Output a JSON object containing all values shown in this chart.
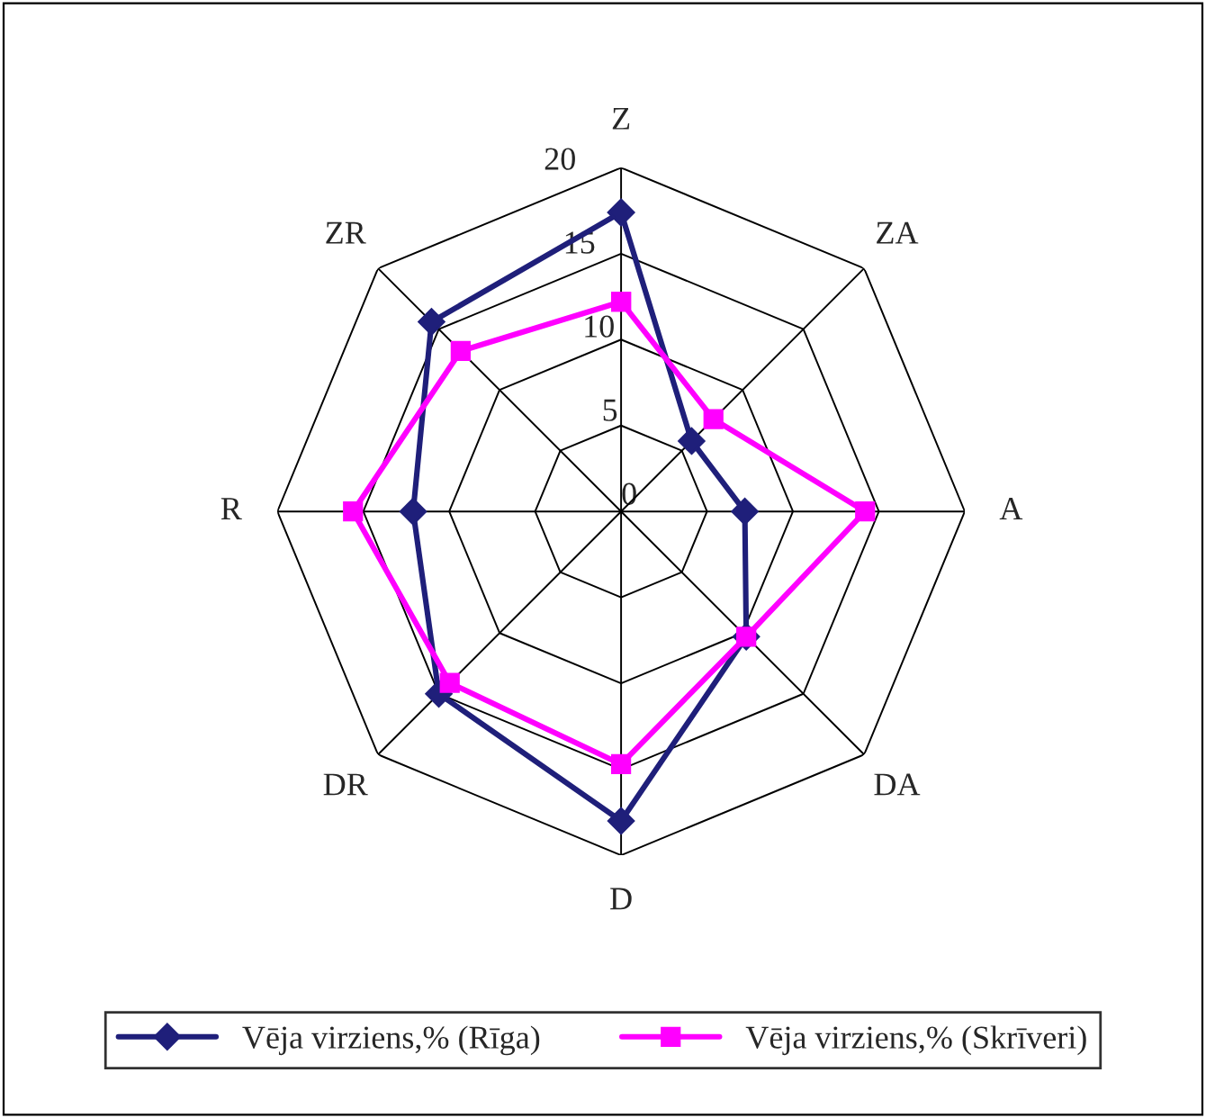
{
  "chart_data": {
    "type": "radar",
    "categories": [
      "Z",
      "ZA",
      "A",
      "DA",
      "D",
      "DR",
      "R",
      "ZR"
    ],
    "series": [
      {
        "name": "Vēja virziens,% (Rīga)",
        "color": "#1f1f7a",
        "marker": "diamond",
        "values": [
          17.4,
          5.8,
          7.2,
          10.3,
          18,
          15,
          12.1,
          15.6
        ]
      },
      {
        "name": "Vēja virziens,% (Skrīveri)",
        "color": "#ff00ff",
        "marker": "square",
        "values": [
          12.2,
          7.6,
          14.2,
          10.3,
          14.7,
          14.1,
          15.6,
          13.2
        ]
      }
    ],
    "ylim": [
      0,
      20
    ],
    "yticks": [
      0,
      5,
      10,
      15,
      20
    ],
    "grid": true,
    "legend": "bottom"
  }
}
